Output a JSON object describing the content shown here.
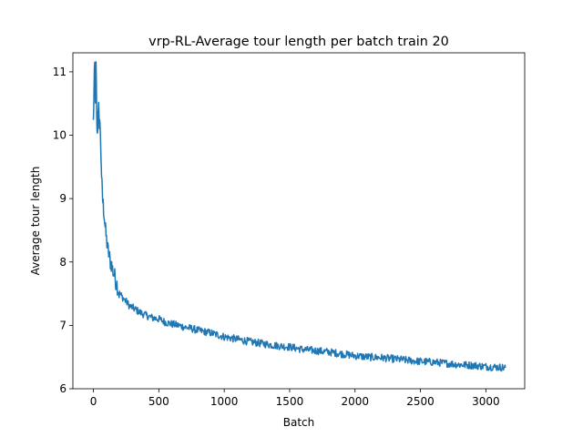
{
  "chart_data": {
    "type": "line",
    "title": "vrp-RL-Average tour length per batch train 20",
    "xlabel": "Batch",
    "ylabel": "Average tour length",
    "xlim": [
      -157,
      3297
    ],
    "ylim": [
      6,
      11.3
    ],
    "xticks": [
      0,
      500,
      1000,
      1500,
      2000,
      2500,
      3000
    ],
    "yticks": [
      6,
      7,
      8,
      9,
      10,
      11
    ],
    "grid": false,
    "line_color": "#1f77b4",
    "series": [
      {
        "x": [
          0,
          5,
          10,
          15,
          20,
          25,
          30,
          35,
          40,
          45,
          50,
          55,
          60,
          65,
          70,
          75,
          80,
          90,
          100,
          110,
          120,
          130,
          140,
          150,
          160,
          170,
          180,
          190,
          200,
          220,
          240,
          260,
          280,
          300,
          330,
          360,
          400,
          450,
          500,
          550,
          600,
          650,
          700,
          750,
          800,
          900,
          1000,
          1100,
          1200,
          1300,
          1400,
          1500,
          1600,
          1700,
          1800,
          1900,
          2000,
          2100,
          2200,
          2300,
          2400,
          2500,
          2600,
          2700,
          2800,
          2900,
          3000,
          3100,
          3150
        ],
        "y": [
          10.2,
          10.75,
          11.1,
          10.6,
          11.1,
          10.3,
          9.95,
          10.35,
          10.6,
          10.0,
          10.3,
          9.85,
          9.55,
          9.2,
          9.0,
          8.9,
          8.8,
          8.55,
          8.35,
          8.2,
          8.1,
          8.0,
          7.95,
          7.85,
          7.8,
          7.7,
          7.65,
          7.55,
          7.5,
          7.45,
          7.4,
          7.35,
          7.3,
          7.28,
          7.24,
          7.2,
          7.16,
          7.12,
          7.1,
          7.05,
          7.02,
          7.0,
          6.97,
          6.95,
          6.92,
          6.88,
          6.82,
          6.78,
          6.74,
          6.71,
          6.68,
          6.66,
          6.62,
          6.6,
          6.58,
          6.55,
          6.52,
          6.5,
          6.49,
          6.47,
          6.45,
          6.43,
          6.42,
          6.4,
          6.38,
          6.37,
          6.35,
          6.34,
          6.33
        ]
      }
    ]
  }
}
